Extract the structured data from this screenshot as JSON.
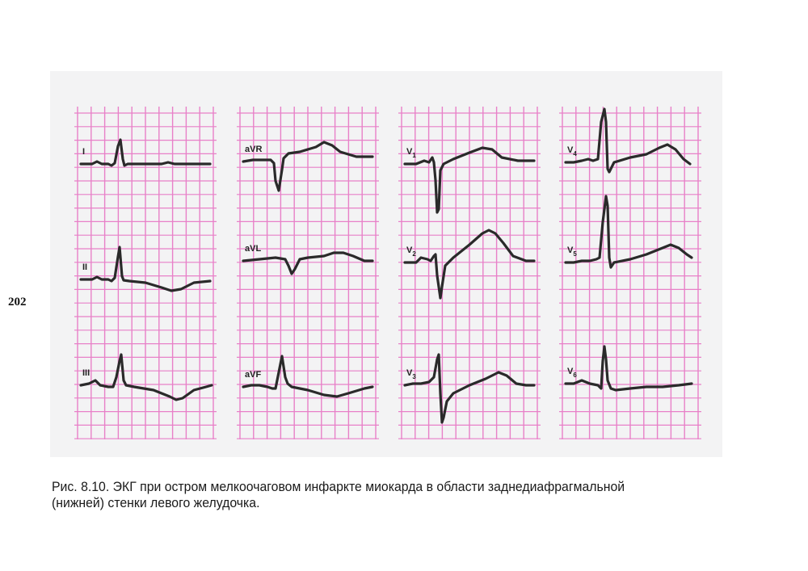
{
  "page_number": "202",
  "figure": {
    "grid_color": "#e880c8",
    "trace_color": "#2a2a2a",
    "leads": [
      {
        "name": "I",
        "sub": "",
        "col": 0,
        "row": 0
      },
      {
        "name": "II",
        "sub": "",
        "col": 0,
        "row": 1
      },
      {
        "name": "III",
        "sub": "",
        "col": 0,
        "row": 2
      },
      {
        "name": "aVR",
        "sub": "",
        "col": 1,
        "row": 0
      },
      {
        "name": "aVL",
        "sub": "",
        "col": 1,
        "row": 1
      },
      {
        "name": "aVF",
        "sub": "",
        "col": 1,
        "row": 2
      },
      {
        "name": "V",
        "sub": "1",
        "col": 2,
        "row": 0
      },
      {
        "name": "V",
        "sub": "2",
        "col": 2,
        "row": 1
      },
      {
        "name": "V",
        "sub": "3",
        "col": 2,
        "row": 2
      },
      {
        "name": "V",
        "sub": "4",
        "col": 3,
        "row": 0
      },
      {
        "name": "V",
        "sub": "5",
        "col": 3,
        "row": 1
      },
      {
        "name": "V",
        "sub": "6",
        "col": 3,
        "row": 2
      }
    ]
  },
  "caption": {
    "line1": "Рис. 8.10. ЭКГ при остром мелкоочаговом инфаркте миокарда в области заднедиафрагмальной",
    "line2": "(нижней) стенки левого желудочка."
  }
}
